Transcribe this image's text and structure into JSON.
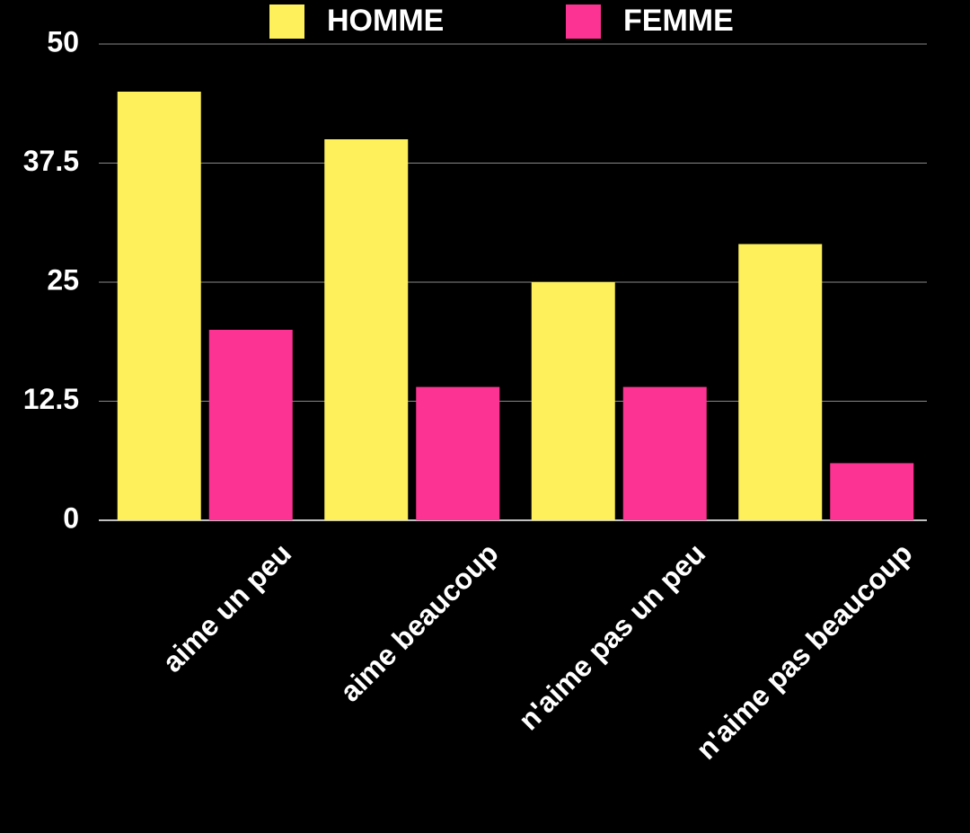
{
  "chart_data": {
    "type": "bar",
    "categories": [
      "aime un peu",
      "aime beaucoup",
      "n'aime pas un peu",
      "n'aime pas beaucoup"
    ],
    "series": [
      {
        "name": "HOMME",
        "color": "#fef05a",
        "values": [
          45,
          40,
          25,
          29
        ]
      },
      {
        "name": "FEMME",
        "color": "#fc3393",
        "values": [
          20,
          14,
          14,
          6
        ]
      }
    ],
    "ylim": [
      0,
      50
    ],
    "yticks": [
      0,
      12.5,
      25,
      37.5,
      50
    ],
    "grid": true,
    "legend": "top"
  }
}
